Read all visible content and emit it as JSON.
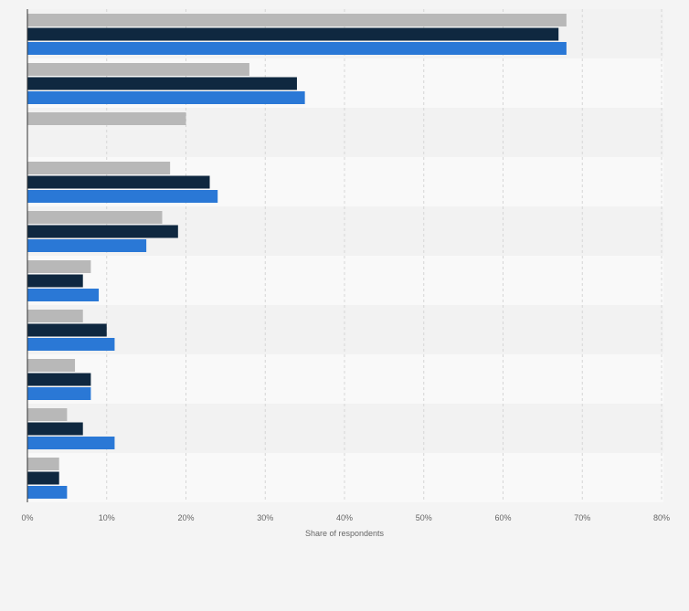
{
  "chart_data": {
    "type": "bar",
    "orientation": "horizontal",
    "title": "",
    "xlabel": "Share of respondents",
    "ylabel": "",
    "xlim": [
      0,
      80
    ],
    "x_ticks": [
      "0%",
      "10%",
      "20%",
      "30%",
      "40%",
      "50%",
      "60%",
      "70%",
      "80%"
    ],
    "grid": true,
    "legend": "none",
    "categories_count": 10,
    "series": [
      {
        "color": "#b8b8b8",
        "values": [
          68,
          28,
          20,
          18,
          17,
          8,
          7,
          6,
          5,
          4
        ]
      },
      {
        "color": "#0f2840",
        "values": [
          67,
          34,
          0,
          23,
          19,
          7,
          10,
          8,
          7,
          4
        ]
      },
      {
        "color": "#2a78d6",
        "values": [
          68,
          35,
          0,
          24,
          15,
          9,
          11,
          8,
          11,
          5
        ]
      }
    ]
  }
}
